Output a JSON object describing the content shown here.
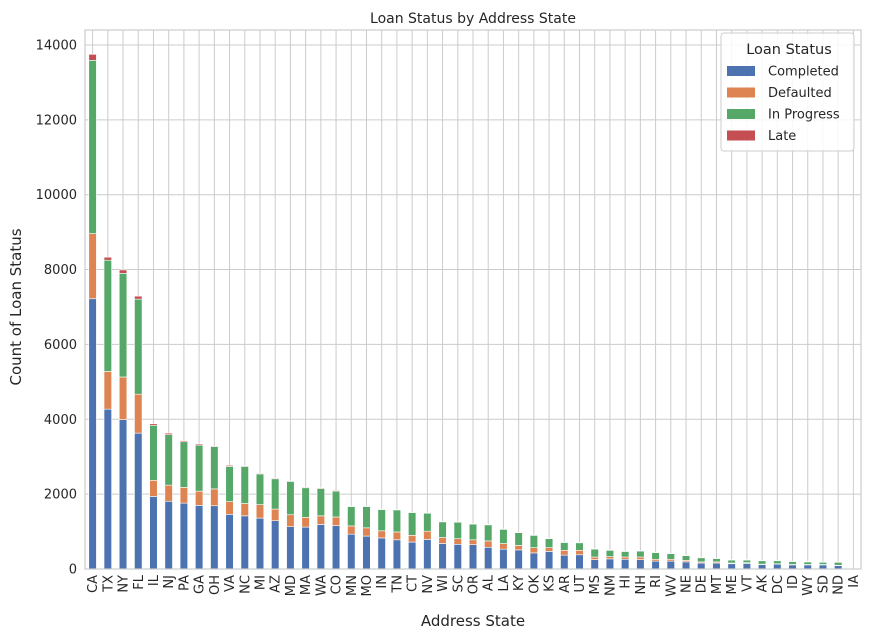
{
  "chart_data": {
    "type": "bar",
    "stacked": true,
    "title": "Loan Status by Address State",
    "xlabel": "Address State",
    "ylabel": "Count of Loan Status",
    "ylim": [
      0,
      14400
    ],
    "yticks": [
      0,
      2000,
      4000,
      6000,
      8000,
      10000,
      12000,
      14000
    ],
    "grid": true,
    "legend": {
      "title": "Loan Status",
      "placement": "top-right"
    },
    "categories": [
      "CA",
      "TX",
      "NY",
      "FL",
      "IL",
      "NJ",
      "PA",
      "GA",
      "OH",
      "VA",
      "NC",
      "MI",
      "AZ",
      "MD",
      "MA",
      "WA",
      "CO",
      "MN",
      "MO",
      "IN",
      "TN",
      "CT",
      "NV",
      "WI",
      "SC",
      "OR",
      "AL",
      "LA",
      "KY",
      "OK",
      "KS",
      "AR",
      "UT",
      "MS",
      "NM",
      "HI",
      "NH",
      "RI",
      "WV",
      "NE",
      "DE",
      "MT",
      "ME",
      "VT",
      "AK",
      "DC",
      "ID",
      "WY",
      "SD",
      "ND",
      "IA"
    ],
    "series": [
      {
        "name": "Completed",
        "color": "#4c72b0",
        "values": [
          7220,
          4270,
          3990,
          3630,
          1940,
          1810,
          1760,
          1700,
          1690,
          1460,
          1420,
          1360,
          1290,
          1130,
          1120,
          1190,
          1160,
          930,
          880,
          830,
          780,
          720,
          790,
          680,
          660,
          650,
          580,
          530,
          510,
          430,
          470,
          370,
          380,
          250,
          270,
          260,
          250,
          210,
          210,
          190,
          160,
          160,
          140,
          150,
          120,
          130,
          110,
          110,
          110,
          90,
          0
        ]
      },
      {
        "name": "Defaulted",
        "color": "#dd8452",
        "values": [
          1740,
          1010,
          1140,
          1040,
          430,
          430,
          420,
          380,
          450,
          340,
          330,
          360,
          310,
          320,
          260,
          230,
          230,
          220,
          220,
          190,
          210,
          180,
          220,
          160,
          150,
          130,
          170,
          150,
          120,
          140,
          100,
          130,
          120,
          70,
          60,
          60,
          70,
          50,
          50,
          40,
          30,
          30,
          20,
          20,
          10,
          10,
          10,
          10,
          10,
          10,
          0
        ]
      },
      {
        "name": "In Progress",
        "color": "#55a868",
        "values": [
          4630,
          2970,
          2770,
          2540,
          1470,
          1350,
          1220,
          1230,
          1130,
          940,
          990,
          820,
          810,
          890,
          790,
          730,
          690,
          520,
          570,
          570,
          590,
          610,
          480,
          420,
          440,
          420,
          430,
          380,
          340,
          330,
          240,
          210,
          200,
          210,
          170,
          150,
          160,
          180,
          150,
          130,
          110,
          90,
          80,
          70,
          90,
          80,
          80,
          70,
          60,
          80,
          0
        ]
      },
      {
        "name": "Late",
        "color": "#c44e52",
        "values": [
          160,
          80,
          90,
          80,
          40,
          40,
          30,
          30,
          20,
          30,
          20,
          20,
          20,
          20,
          20,
          20,
          20,
          10,
          10,
          10,
          10,
          10,
          10,
          10,
          10,
          10,
          10,
          10,
          10,
          10,
          10,
          10,
          10,
          10,
          10,
          10,
          10,
          10,
          10,
          10,
          10,
          10,
          10,
          10,
          10,
          10,
          10,
          10,
          10,
          10,
          10
        ]
      }
    ]
  }
}
